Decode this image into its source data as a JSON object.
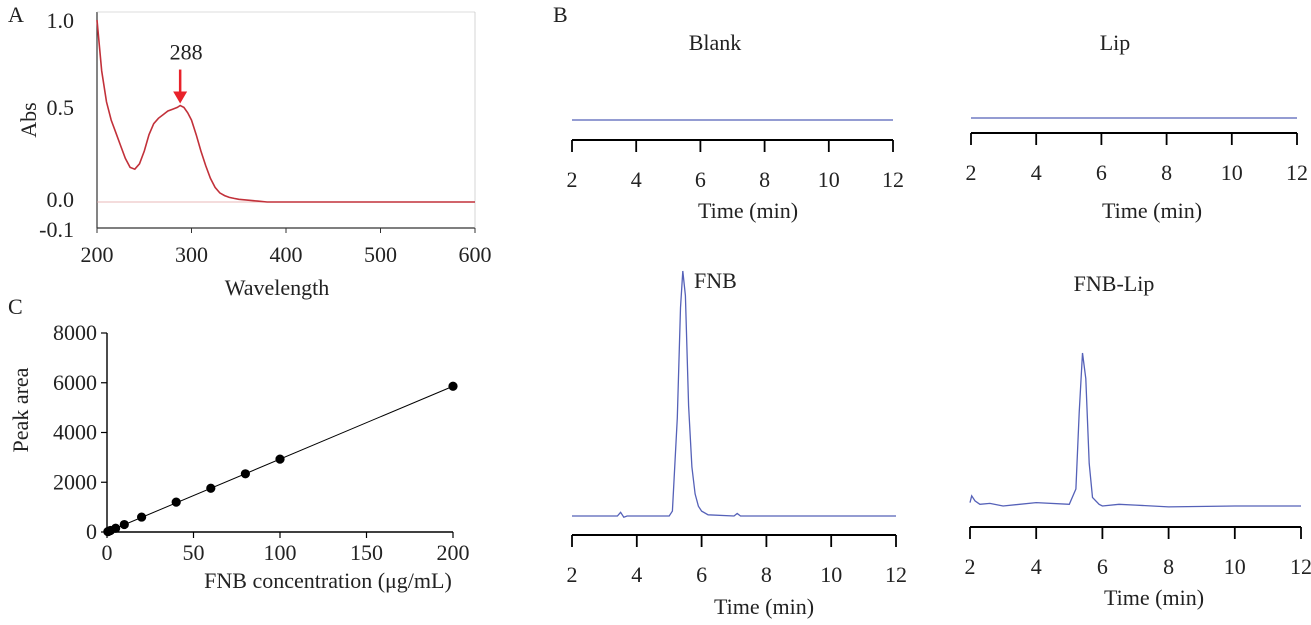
{
  "panels": {
    "A": {
      "letter": "A"
    },
    "B": {
      "letter": "B"
    },
    "C": {
      "letter": "C"
    }
  },
  "chart_data": [
    {
      "id": "A",
      "type": "line",
      "xlabel": "Wavelength",
      "ylabel": "Abs",
      "xlim": [
        200,
        600
      ],
      "ylim": [
        -0.1,
        1.0
      ],
      "xticks": [
        "200",
        "300",
        "400",
        "500",
        "600"
      ],
      "yticks": [
        {
          "v": 1.0,
          "label": "1.0"
        },
        {
          "v": 0.5,
          "label": "0.5"
        },
        {
          "v": 0.0,
          "label": "0.0"
        },
        {
          "v": -0.1,
          "label": "-0.1"
        }
      ],
      "annotation": {
        "text": "288",
        "x": 288,
        "y": 0.53
      },
      "x": [
        200,
        205,
        210,
        215,
        220,
        225,
        230,
        235,
        240,
        245,
        250,
        255,
        260,
        265,
        270,
        275,
        280,
        285,
        288,
        292,
        296,
        300,
        305,
        310,
        315,
        320,
        325,
        330,
        335,
        340,
        345,
        350,
        360,
        370,
        380,
        390,
        400,
        450,
        500,
        550,
        600
      ],
      "y": [
        1.0,
        0.72,
        0.55,
        0.45,
        0.38,
        0.31,
        0.24,
        0.19,
        0.18,
        0.21,
        0.28,
        0.37,
        0.43,
        0.46,
        0.48,
        0.5,
        0.51,
        0.52,
        0.53,
        0.52,
        0.49,
        0.45,
        0.37,
        0.28,
        0.2,
        0.13,
        0.08,
        0.05,
        0.035,
        0.025,
        0.02,
        0.015,
        0.01,
        0.005,
        0.0,
        0.0,
        0.0,
        0.0,
        0.0,
        0.0,
        0.0
      ],
      "color": "#c2313a"
    },
    {
      "id": "B-blank",
      "type": "line",
      "title": "Blank",
      "xlabel": "Time (min)",
      "xlim": [
        2,
        12
      ],
      "xticks": [
        "2",
        "4",
        "6",
        "8",
        "10",
        "12"
      ],
      "x": [
        2,
        4,
        6,
        8,
        10,
        12
      ],
      "y": [
        0,
        0,
        0,
        0,
        0,
        0
      ],
      "color": "#5561b8"
    },
    {
      "id": "B-lip",
      "type": "line",
      "title": "Lip",
      "xlabel": "Time (min)",
      "xlim": [
        2,
        12
      ],
      "xticks": [
        "2",
        "4",
        "6",
        "8",
        "10",
        "12"
      ],
      "x": [
        2,
        4,
        6,
        8,
        10,
        12
      ],
      "y": [
        0,
        0,
        0,
        0,
        0,
        0
      ],
      "color": "#5561b8"
    },
    {
      "id": "B-fnb",
      "type": "line",
      "title": "FNB",
      "xlabel": "Time (min)",
      "xlim": [
        2,
        12
      ],
      "xticks": [
        "2",
        "4",
        "6",
        "8",
        "10",
        "12"
      ],
      "x": [
        2,
        3.4,
        3.5,
        3.6,
        3.7,
        5.0,
        5.1,
        5.25,
        5.35,
        5.42,
        5.5,
        5.6,
        5.7,
        5.8,
        5.9,
        6.0,
        6.2,
        7.0,
        7.1,
        7.2,
        7.3,
        12
      ],
      "y": [
        0,
        0,
        0.015,
        -0.005,
        0,
        0,
        0.02,
        0.4,
        0.85,
        1.0,
        0.9,
        0.45,
        0.2,
        0.09,
        0.04,
        0.02,
        0.005,
        0,
        0.01,
        0,
        0,
        0
      ],
      "color": "#5561b8"
    },
    {
      "id": "B-fnblip",
      "type": "line",
      "title": "FNB-Lip",
      "xlabel": "Time (min)",
      "xlim": [
        2,
        12
      ],
      "xticks": [
        "2",
        "4",
        "6",
        "8",
        "10",
        "12"
      ],
      "x": [
        2,
        2.05,
        2.15,
        2.3,
        2.6,
        3.0,
        4.0,
        5.0,
        5.2,
        5.3,
        5.4,
        5.5,
        5.6,
        5.7,
        5.9,
        6.0,
        6.5,
        7.0,
        8.0,
        10.0,
        12
      ],
      "y": [
        0.02,
        0.06,
        0.03,
        0.01,
        0.015,
        0.0,
        0.02,
        0.01,
        0.1,
        0.55,
        0.9,
        0.75,
        0.25,
        0.05,
        0.01,
        0.0,
        0.01,
        0.005,
        -0.005,
        0.0,
        0.0
      ],
      "color": "#5561b8"
    },
    {
      "id": "C",
      "type": "scatter",
      "xlabel": "FNB concentration (μg/mL)",
      "ylabel": "Peak area",
      "xlim": [
        0,
        200
      ],
      "ylim": [
        0,
        8000
      ],
      "xticks": [
        "0",
        "50",
        "100",
        "150",
        "200"
      ],
      "yticks": [
        "0",
        "2000",
        "4000",
        "6000",
        "8000"
      ],
      "x": [
        0.5,
        1,
        2,
        5,
        10,
        20,
        40,
        60,
        80,
        100,
        200
      ],
      "y": [
        15,
        30,
        60,
        150,
        300,
        600,
        1200,
        1760,
        2340,
        2930,
        5860
      ],
      "fit": {
        "x": [
          0,
          200
        ],
        "y": [
          0,
          5860
        ]
      },
      "color": "#000000"
    }
  ]
}
